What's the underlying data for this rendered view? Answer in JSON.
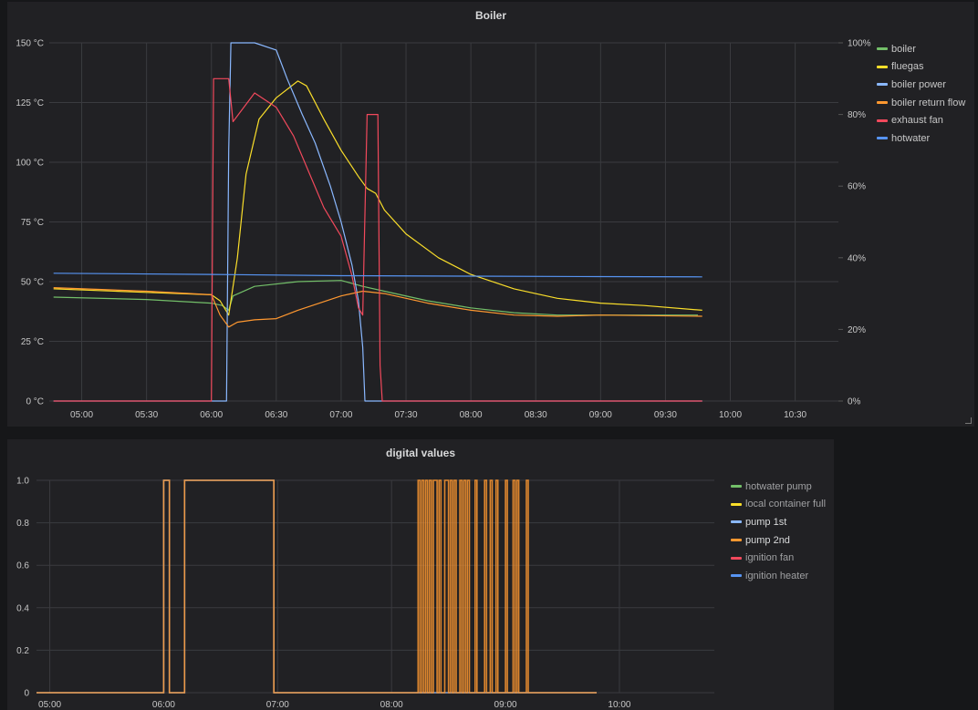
{
  "panels": {
    "boiler": {
      "title": "Boiler"
    },
    "digital": {
      "title": "digital values"
    }
  },
  "chart_data": [
    {
      "type": "line",
      "title": "Boiler",
      "x_ticks": [
        "05:00",
        "05:30",
        "06:00",
        "06:30",
        "07:00",
        "07:30",
        "08:00",
        "08:30",
        "09:00",
        "09:30",
        "10:00",
        "10:30"
      ],
      "xlim": [
        "04:45",
        "10:50"
      ],
      "y_left": {
        "ticks": [
          "0 °C",
          "25 °C",
          "50 °C",
          "75 °C",
          "100 °C",
          "125 °C",
          "150 °C"
        ],
        "lim": [
          0,
          150
        ],
        "unit": "°C"
      },
      "y_right": {
        "ticks": [
          "0%",
          "20%",
          "40%",
          "60%",
          "80%",
          "100%"
        ],
        "lim": [
          0,
          100
        ],
        "unit": "%"
      },
      "grid": true,
      "legend": "right",
      "series": [
        {
          "name": "boiler",
          "color": "#73bf69",
          "axis": "left",
          "points": [
            [
              "04:47",
              43.5
            ],
            [
              "05:30",
              42.5
            ],
            [
              "06:00",
              41
            ],
            [
              "06:05",
              40
            ],
            [
              "06:08",
              38
            ],
            [
              "06:10",
              44
            ],
            [
              "06:20",
              48
            ],
            [
              "06:40",
              50
            ],
            [
              "07:00",
              50.5
            ],
            [
              "07:10",
              48
            ],
            [
              "07:20",
              46
            ],
            [
              "07:40",
              42
            ],
            [
              "08:00",
              39
            ],
            [
              "08:20",
              37
            ],
            [
              "08:40",
              36
            ],
            [
              "09:00",
              36
            ],
            [
              "09:45",
              36
            ]
          ]
        },
        {
          "name": "fluegas",
          "color": "#fade2a",
          "axis": "left",
          "points": [
            [
              "04:47",
              47
            ],
            [
              "05:30",
              45.5
            ],
            [
              "06:00",
              44.5
            ],
            [
              "06:04",
              42
            ],
            [
              "06:08",
              36
            ],
            [
              "06:12",
              60
            ],
            [
              "06:16",
              95
            ],
            [
              "06:22",
              118
            ],
            [
              "06:30",
              127
            ],
            [
              "06:40",
              134
            ],
            [
              "06:44",
              132
            ],
            [
              "06:52",
              118
            ],
            [
              "07:00",
              105
            ],
            [
              "07:08",
              94
            ],
            [
              "07:12",
              89
            ],
            [
              "07:16",
              87
            ],
            [
              "07:20",
              80
            ],
            [
              "07:30",
              70
            ],
            [
              "07:45",
              60
            ],
            [
              "08:00",
              53
            ],
            [
              "08:20",
              47
            ],
            [
              "08:40",
              43
            ],
            [
              "09:00",
              41
            ],
            [
              "09:20",
              40
            ],
            [
              "09:47",
              38
            ]
          ]
        },
        {
          "name": "boiler power",
          "color": "#8ab8ff",
          "axis": "right",
          "points": [
            [
              "04:47",
              0
            ],
            [
              "06:07",
              0
            ],
            [
              "06:08",
              70
            ],
            [
              "06:09",
              100
            ],
            [
              "06:20",
              100
            ],
            [
              "06:30",
              98
            ],
            [
              "06:35",
              90
            ],
            [
              "06:42",
              80
            ],
            [
              "06:48",
              72
            ],
            [
              "06:55",
              60
            ],
            [
              "07:00",
              50
            ],
            [
              "07:05",
              38
            ],
            [
              "07:08",
              28
            ],
            [
              "07:10",
              15
            ],
            [
              "07:11",
              0
            ],
            [
              "09:47",
              0
            ]
          ]
        },
        {
          "name": "boiler return flow",
          "color": "#ff9830",
          "axis": "left",
          "points": [
            [
              "04:47",
              47.5
            ],
            [
              "05:30",
              46
            ],
            [
              "06:00",
              44.5
            ],
            [
              "06:04",
              36
            ],
            [
              "06:08",
              31
            ],
            [
              "06:12",
              33
            ],
            [
              "06:20",
              34
            ],
            [
              "06:30",
              34.5
            ],
            [
              "06:40",
              38
            ],
            [
              "06:50",
              41
            ],
            [
              "07:00",
              44
            ],
            [
              "07:10",
              46
            ],
            [
              "07:20",
              45
            ],
            [
              "07:40",
              41
            ],
            [
              "08:00",
              38
            ],
            [
              "08:20",
              36
            ],
            [
              "08:40",
              35.5
            ],
            [
              "09:00",
              36
            ],
            [
              "09:47",
              35.5
            ]
          ]
        },
        {
          "name": "exhaust fan",
          "color": "#f2495c",
          "axis": "right",
          "points": [
            [
              "04:47",
              0
            ],
            [
              "06:00",
              0
            ],
            [
              "06:01",
              90
            ],
            [
              "06:08",
              90
            ],
            [
              "06:10",
              78
            ],
            [
              "06:20",
              86
            ],
            [
              "06:30",
              82
            ],
            [
              "06:38",
              74
            ],
            [
              "06:45",
              64
            ],
            [
              "06:52",
              54
            ],
            [
              "07:00",
              46
            ],
            [
              "07:05",
              35
            ],
            [
              "07:08",
              26
            ],
            [
              "07:10",
              24
            ],
            [
              "07:12",
              80
            ],
            [
              "07:17",
              80
            ],
            [
              "07:18",
              10
            ],
            [
              "07:19",
              0
            ],
            [
              "09:47",
              0
            ]
          ]
        },
        {
          "name": "hotwater",
          "color": "#5794f2",
          "axis": "left",
          "points": [
            [
              "04:47",
              53.5
            ],
            [
              "06:00",
              53
            ],
            [
              "07:00",
              52.5
            ],
            [
              "08:00",
              52.3
            ],
            [
              "09:00",
              52.1
            ],
            [
              "09:47",
              52
            ]
          ]
        }
      ]
    },
    {
      "type": "line",
      "title": "digital values",
      "x_ticks": [
        "05:00",
        "06:00",
        "07:00",
        "08:00",
        "09:00",
        "10:00"
      ],
      "xlim": [
        "04:53",
        "10:50"
      ],
      "y_ticks": [
        "0",
        "0.2",
        "0.4",
        "0.6",
        "0.8",
        "1.0"
      ],
      "ylim": [
        0,
        1
      ],
      "grid": true,
      "legend": "right",
      "series": [
        {
          "name": "hotwater pump",
          "color": "#73bf69",
          "steps": []
        },
        {
          "name": "local container full",
          "color": "#fade2a",
          "steps": []
        },
        {
          "name": "pump 1st",
          "color": "#8ab8ff",
          "steps": [
            [
              "04:53",
              0
            ],
            [
              "06:00",
              1
            ],
            [
              "06:03",
              0
            ],
            [
              "06:11",
              1
            ],
            [
              "06:58",
              0
            ],
            [
              "09:48",
              0
            ]
          ]
        },
        {
          "name": "pump 2nd",
          "color": "#ff9830",
          "steps": [
            [
              "04:53",
              0
            ],
            [
              "06:00",
              1
            ],
            [
              "06:03",
              0
            ],
            [
              "06:11",
              1
            ],
            [
              "06:58",
              0
            ],
            [
              "08:14",
              1
            ],
            [
              "08:15",
              0
            ],
            [
              "08:16",
              1
            ],
            [
              "08:17",
              0
            ],
            [
              "08:18",
              1
            ],
            [
              "08:19",
              0
            ],
            [
              "08:20",
              1
            ],
            [
              "08:21",
              0
            ],
            [
              "08:22",
              1
            ],
            [
              "08:24",
              0
            ],
            [
              "08:25",
              1
            ],
            [
              "08:26",
              0
            ],
            [
              "08:28",
              1
            ],
            [
              "08:30",
              0
            ],
            [
              "08:31",
              1
            ],
            [
              "08:32",
              0
            ],
            [
              "08:33",
              1
            ],
            [
              "08:34",
              0
            ],
            [
              "08:36",
              1
            ],
            [
              "08:37",
              0
            ],
            [
              "08:38",
              1
            ],
            [
              "08:39",
              0
            ],
            [
              "08:40",
              1
            ],
            [
              "08:41",
              0
            ],
            [
              "08:44",
              1
            ],
            [
              "08:45",
              0
            ],
            [
              "08:49",
              1
            ],
            [
              "08:50",
              0
            ],
            [
              "08:52",
              1
            ],
            [
              "08:53",
              0
            ],
            [
              "08:55",
              1
            ],
            [
              "08:56",
              0
            ],
            [
              "09:00",
              1
            ],
            [
              "09:01",
              0
            ],
            [
              "09:04",
              1
            ],
            [
              "09:05",
              0
            ],
            [
              "09:06",
              1
            ],
            [
              "09:07",
              0
            ],
            [
              "09:11",
              1
            ],
            [
              "09:12",
              0
            ],
            [
              "09:48",
              0
            ]
          ]
        },
        {
          "name": "ignition fan",
          "color": "#f2495c",
          "steps": []
        },
        {
          "name": "ignition heater",
          "color": "#5794f2",
          "steps": []
        }
      ]
    }
  ]
}
